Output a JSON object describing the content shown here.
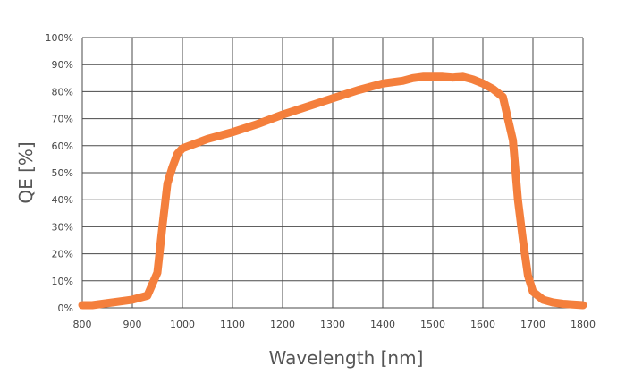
{
  "chart_data": {
    "type": "line",
    "title": "",
    "xlabel": "Wavelength [nm]",
    "ylabel": "QE [%]",
    "xlim": [
      800,
      1800
    ],
    "ylim": [
      0,
      100
    ],
    "x_ticks": [
      "800",
      "900",
      "1000",
      "1100",
      "1200",
      "1300",
      "1400",
      "1500",
      "1600",
      "1700",
      "1800"
    ],
    "y_ticks": [
      "0%",
      "10%",
      "20%",
      "30%",
      "40%",
      "50%",
      "60%",
      "70%",
      "80%",
      "90%",
      "100%"
    ],
    "grid": true,
    "line_color": "#f47f3c",
    "series": [
      {
        "x": [
          800,
          820,
          860,
          900,
          930,
          950,
          960,
          970,
          980,
          990,
          1000,
          1050,
          1100,
          1150,
          1200,
          1250,
          1300,
          1350,
          1400,
          1420,
          1440,
          1460,
          1480,
          1500,
          1520,
          1540,
          1560,
          1580,
          1600,
          1620,
          1640,
          1650,
          1660,
          1670,
          1680,
          1690,
          1700,
          1720,
          1740,
          1760,
          1800
        ],
        "y": [
          1,
          1,
          2,
          3,
          4.5,
          13,
          30,
          46,
          52,
          57,
          59,
          62.5,
          65,
          68,
          71.5,
          74.5,
          77.5,
          80.5,
          83,
          83.5,
          84,
          85,
          85.5,
          85.5,
          85.5,
          85.2,
          85.5,
          84.5,
          83,
          81,
          78,
          70,
          62,
          40,
          25,
          12,
          6,
          3,
          2,
          1.5,
          1
        ]
      }
    ]
  }
}
